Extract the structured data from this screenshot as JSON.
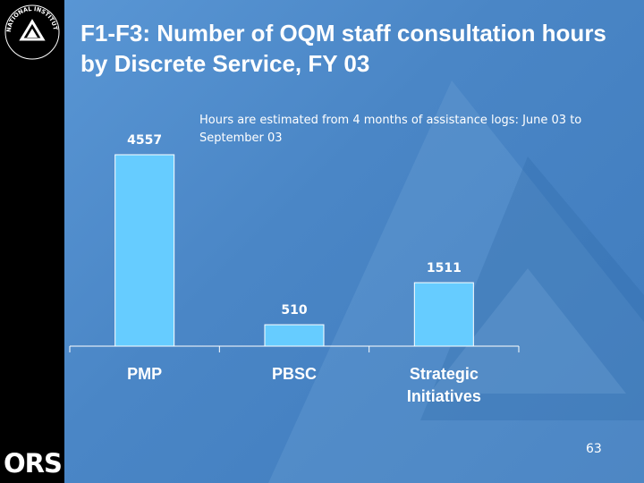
{
  "slide": {
    "title": "F1-F3: Number of OQM staff consultation hours by Discrete Service, FY 03",
    "subtitle": "Hours are estimated from 4 months of assistance logs: June 03 to September 03",
    "page_number": "63",
    "logo_text": "ORS",
    "seal_text": "NATIONAL INSTITUTES OF HEALTH"
  },
  "colors": {
    "background": "#4a86c6",
    "left_band": "#000000",
    "bar_fill": "#66ccff",
    "bar_stroke": "#ffffff",
    "text": "#ffffff",
    "watermark": "#7fb0e0"
  },
  "chart_data": {
    "type": "bar",
    "categories": [
      "PMP",
      "PBSC",
      "Strategic Initiatives"
    ],
    "values": [
      4557,
      510,
      1511
    ],
    "data_labels": [
      "4557",
      "510",
      "1511"
    ],
    "title": "",
    "xlabel": "",
    "ylabel": "",
    "ylim": [
      0,
      4557
    ],
    "grid": false,
    "legend": "none"
  }
}
